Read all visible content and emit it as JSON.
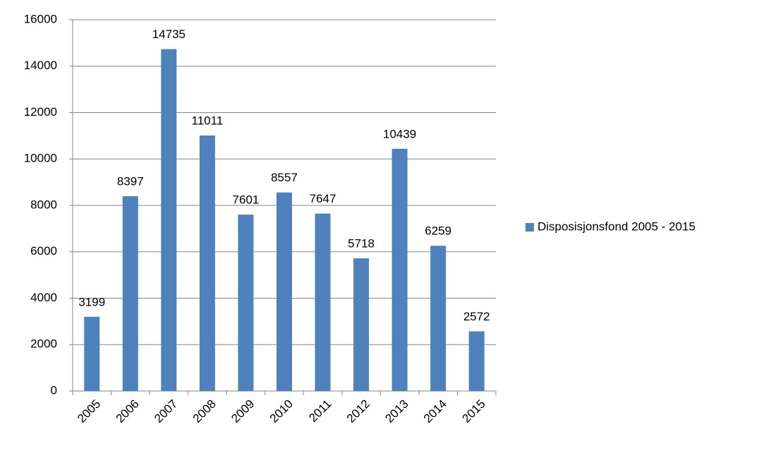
{
  "chart_data": {
    "type": "bar",
    "categories": [
      "2005",
      "2006",
      "2007",
      "2008",
      "2009",
      "2010",
      "2011",
      "2012",
      "2013",
      "2014",
      "2015"
    ],
    "series": [
      {
        "name": "Disposisjonsfond 2005 - 2015",
        "color": "#4f81bd",
        "values": [
          3199,
          8397,
          14735,
          11011,
          7601,
          8557,
          7647,
          5718,
          10439,
          6259,
          2572
        ]
      }
    ],
    "ylim": [
      0,
      16000
    ],
    "yticks": [
      0,
      2000,
      4000,
      6000,
      8000,
      10000,
      12000,
      14000,
      16000
    ],
    "grid": true,
    "legend": "right"
  }
}
